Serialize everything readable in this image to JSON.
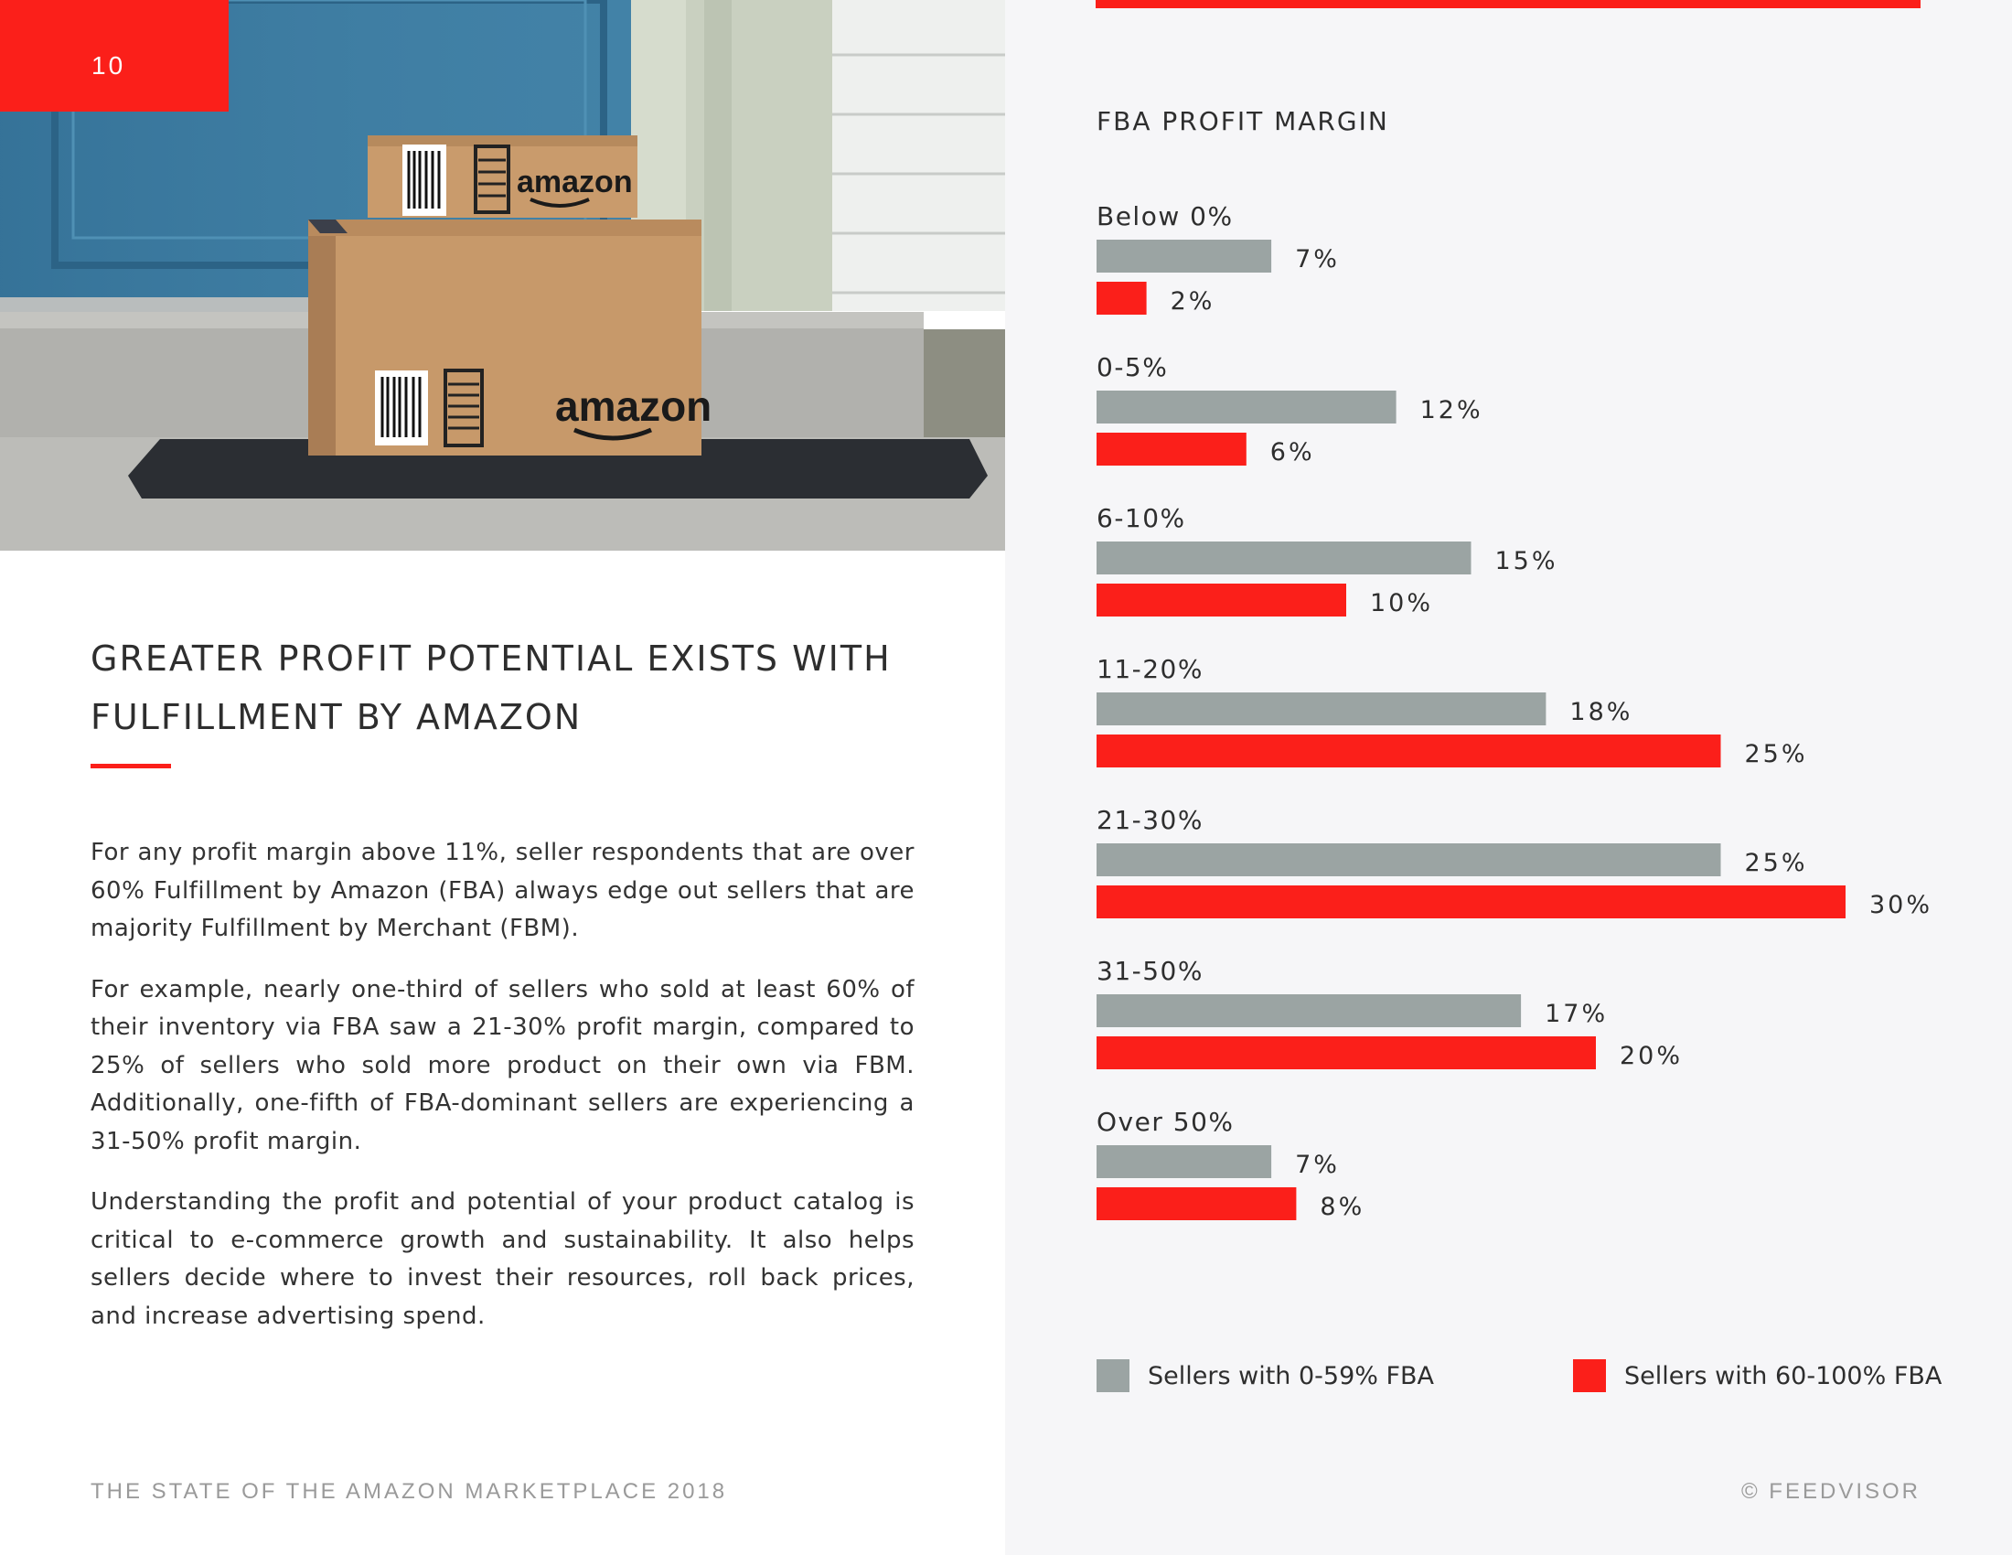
{
  "page_number": "10",
  "photo": {
    "box_top_brand": "amazon",
    "box_bottom_brand": "amazon"
  },
  "heading": {
    "line1": "GREATER PROFIT POTENTIAL EXISTS WITH",
    "line2": "FULFILLMENT BY AMAZON"
  },
  "body": {
    "p1": "For any profit margin above 11%, seller respondents that are over 60% Fulfillment by Amazon (FBA) always edge out sellers that are majority Fulfillment by Merchant (FBM).",
    "p2": "For example, nearly one-third of sellers who sold at least 60% of their inventory via FBA saw a 21-30% profit margin, compared to 25% of sellers who sold more product on their own via FBM. Additionally, one-fifth of FBA-dominant sellers are experiencing a 31-50% profit margin.",
    "p3": "Understanding the profit and potential of your product catalog is critical to e-commerce growth and sustainability. It also helps sellers decide where to invest their resources, roll back prices, and increase advertising spend."
  },
  "footer": {
    "left": "THE STATE OF THE AMAZON MARKETPLACE 2018",
    "right": "© FEEDVISOR"
  },
  "colors": {
    "accent_red": "#fb1f1a",
    "series_gray": "#9ba4a3"
  },
  "chart_data": {
    "type": "bar",
    "orientation": "horizontal",
    "title": "FBA PROFIT MARGIN",
    "categories": [
      "Below 0%",
      "0-5%",
      "6-10%",
      "11-20%",
      "21-30%",
      "31-50%",
      "Over 50%"
    ],
    "series": [
      {
        "name": "Sellers with 0-59% FBA",
        "color": "#9ba4a3",
        "values": [
          7,
          12,
          15,
          18,
          25,
          17,
          7
        ]
      },
      {
        "name": "Sellers with 60-100% FBA",
        "color": "#fb1f1a",
        "values": [
          2,
          6,
          10,
          25,
          30,
          20,
          8
        ]
      }
    ],
    "value_suffix": "%",
    "data_labels": true,
    "grid": false,
    "legend_position": "bottom"
  }
}
